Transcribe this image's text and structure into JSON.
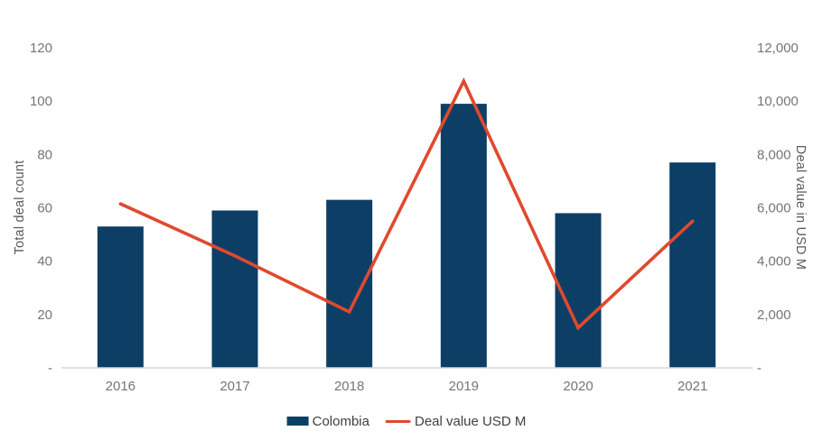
{
  "chart_data": {
    "type": "combo_bar_line",
    "title": "",
    "categories": [
      "2016",
      "2017",
      "2018",
      "2019",
      "2020",
      "2021"
    ],
    "series": [
      {
        "name": "Colombia",
        "type": "bar",
        "axis": "left",
        "color": "#0d3f66",
        "values": [
          53,
          59,
          63,
          99,
          58,
          77
        ]
      },
      {
        "name": "Deal value USD M",
        "type": "line",
        "axis": "right",
        "color": "#e0492e",
        "values": [
          6150,
          4200,
          2100,
          10750,
          1500,
          5500
        ]
      }
    ],
    "left_axis": {
      "title": "Total deal count",
      "tick_labels": [
        "120",
        "100",
        "80",
        "60",
        "40",
        "20",
        "-"
      ],
      "range": [
        0,
        120
      ]
    },
    "right_axis": {
      "title": "Deal value in USD M",
      "tick_labels": [
        "12,000",
        "10,000",
        "8,000",
        "6,000",
        "4,000",
        "2,000",
        "-"
      ],
      "range": [
        0,
        12000
      ]
    },
    "x_axis": {
      "tick_labels": [
        "2016",
        "2017",
        "2018",
        "2019",
        "2020",
        "2021"
      ]
    },
    "legend": {
      "position": "bottom",
      "items": [
        {
          "label": "Colombia",
          "swatch": "square",
          "color": "#0d3f66"
        },
        {
          "label": "Deal value USD M",
          "swatch": "line",
          "color": "#e0492e"
        }
      ]
    },
    "grid": false,
    "axis_line_color": "#d9d9d9",
    "tick_text_color": "#757575",
    "background": "#ffffff"
  }
}
